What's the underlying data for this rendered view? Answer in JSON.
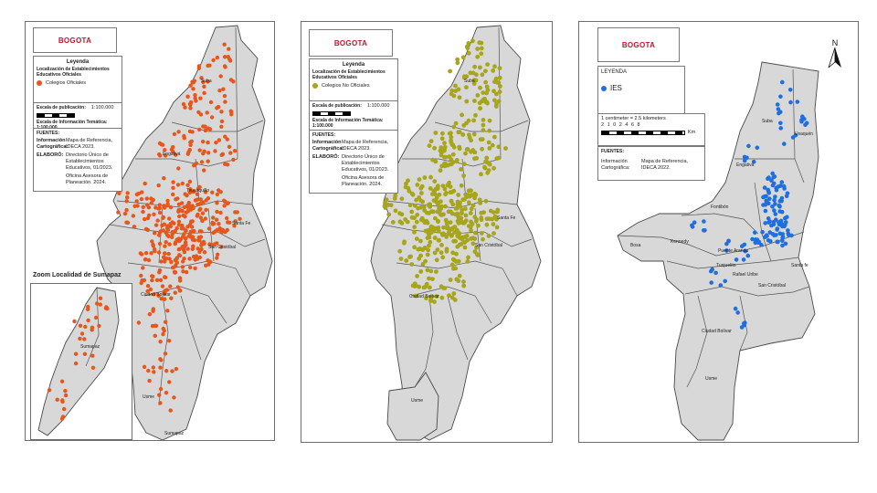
{
  "colors": {
    "oficiales": "#e8561c",
    "no_oficiales": "#a7a51b",
    "ies": "#1f6fe0",
    "logo_red": "#c8102e",
    "locality_fill": "#d8d8d8"
  },
  "panel1": {
    "logo": "BOGOTA",
    "legend_title": "Leyenda",
    "legend_subtitle": "Localización de Establecimientos Educativos Oficiales",
    "symbol_label": "Colegios Oficiales",
    "scale_label": "Escala de publicación:",
    "scale_value": "1:100.000",
    "scale_thematic": "Escala de Información Temática: 1:100.000",
    "sources_title": "FUENTES:",
    "sources": [
      {
        "key": "Información Cartográfica:",
        "value": "Mapa de Referencia, IDECA 2023."
      },
      {
        "key": "ELABORÓ:",
        "value": "Directorio Único de Establecimientos Educativos, 01/2023."
      },
      {
        "key": "",
        "value": "Oficina Asesora de Planeación. 2024."
      }
    ],
    "zoom_title": "Zoom Localidad de Sumapaz",
    "zoom_label": "Sumapaz",
    "labels": {
      "suba": "Suba",
      "engativa": "Engativá",
      "teusaquillo": "Teusaquillo",
      "santafe": "Santa Fe",
      "sancristobal": "San Cristóbal",
      "ciudadbolivar": "Ciudad Bolívar",
      "usme": "Usme",
      "sumapaz": "Sumapaz"
    }
  },
  "panel2": {
    "logo": "BOGOTA",
    "legend_title": "Leyenda",
    "legend_subtitle": "Localización de Establecimientos Educativos Oficiales",
    "symbol_label": "Colegios No Oficiales",
    "scale_label": "Escala de publicación:",
    "scale_value": "1:100.000",
    "scale_thematic": "Escala de Información Temática: 1:100.000",
    "sources_title": "FUENTES:",
    "sources": [
      {
        "key": "Información Cartográfica:",
        "value": "Mapa de Referencia, IDECA 2023."
      },
      {
        "key": "ELABORÓ:",
        "value": "Directorio Único de Establecimientos Educativos, 01/2023."
      },
      {
        "key": "",
        "value": "Oficina Asesora de Planeación. 2024."
      }
    ],
    "labels": {
      "suba": "Suba",
      "santafe": "Santa Fe",
      "sancristobal": "San Cristóbal",
      "ciudadbolivar": "Ciudad Bolívar",
      "usme": "Usme"
    }
  },
  "panel3": {
    "logo": "BOGOTA",
    "legend_title": "LEYENDA",
    "symbol_label": "IES",
    "scale_text": "1 centimeter = 2.5 kilometers",
    "scale_ticks": "2 1 0   2   4   6   8",
    "scale_unit": "Km",
    "sources_title": "FUENTES:",
    "sources": [
      {
        "key": "Información Cartográfica:",
        "value": "Mapa de Referencia, IDECA 2022."
      }
    ],
    "north": "N",
    "labels": {
      "suba": "Suba",
      "usaquen": "Usaquén",
      "engativa": "Engativá",
      "fontibon": "Fontibón",
      "kennedy": "Kennedy",
      "bosa": "Bosa",
      "puente": "Puente Aranda",
      "santafe": "Santa fe",
      "sancristobal": "San Cristóbal",
      "ciudadbolivar": "Ciudad Bolívar",
      "usme": "Usme",
      "rafael": "Rafael Uribe",
      "tunjuelito": "Tunjuelito"
    }
  }
}
